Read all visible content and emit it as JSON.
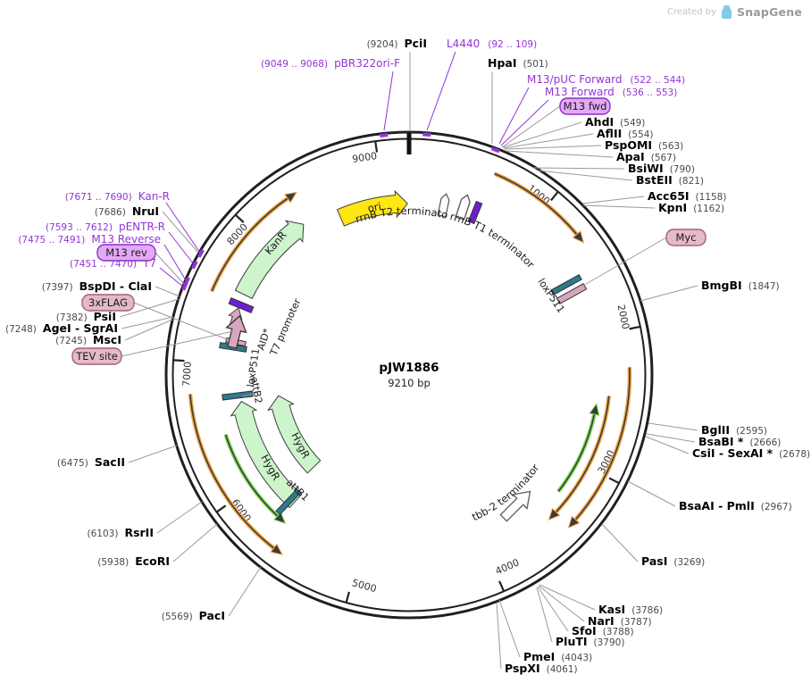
{
  "watermark": {
    "created_by": "Created by",
    "brand": "SnapGene"
  },
  "plasmid": {
    "name": "pJW1886",
    "size": "9210 bp"
  },
  "tick_labels": [
    "1000",
    "2000",
    "3000",
    "4000",
    "5000",
    "6000",
    "7000",
    "8000",
    "9000"
  ],
  "colors": {
    "primer_purple": "#9335d6",
    "site_pos_gray": "#4a4a4a",
    "ring_black": "#1f1f1f",
    "green_fill": "#cdf4cb",
    "yellow": "#ffe714",
    "orange": "#f0a648",
    "bright_green": "#82dd5c",
    "teal": "#2c7a8c",
    "pink": "#d9a6bd",
    "purple_feature": "#6f1fd1",
    "pill_purple_fill": "#e2a9f5",
    "pill_purple_stroke": "#8b2fc9",
    "pill_pink_fill": "#e5b9c8",
    "pill_pink_stroke": "#a06276"
  },
  "restriction_sites": [
    {
      "id": "pciI",
      "name": "PciI",
      "pos": "(9204)",
      "pos_first": true
    },
    {
      "id": "hpaI",
      "name": "HpaI",
      "pos": "(501)",
      "pos_first": false
    },
    {
      "id": "ahdI",
      "name": "AhdI",
      "pos": "(549)",
      "pos_first": false
    },
    {
      "id": "aflII",
      "name": "AflII",
      "pos": "(554)",
      "pos_first": false
    },
    {
      "id": "pspOMI",
      "name": "PspOMI",
      "pos": "(563)",
      "pos_first": false
    },
    {
      "id": "apaI",
      "name": "ApaI",
      "pos": "(567)",
      "pos_first": false
    },
    {
      "id": "bsiWI",
      "name": "BsiWI",
      "pos": "(790)",
      "pos_first": false
    },
    {
      "id": "bstEII",
      "name": "BstEII",
      "pos": "(821)",
      "pos_first": false
    },
    {
      "id": "acc65I",
      "name": "Acc65I",
      "pos": "(1158)",
      "pos_first": false
    },
    {
      "id": "kpnI",
      "name": "KpnI",
      "pos": "(1162)",
      "pos_first": false
    },
    {
      "id": "bmgBI",
      "name": "BmgBI",
      "pos": "(1847)",
      "pos_first": false
    },
    {
      "id": "bglII",
      "name": "BglII",
      "pos": "(2595)",
      "pos_first": false
    },
    {
      "id": "bsaBI",
      "name": "BsaBI *",
      "pos": "(2666)",
      "pos_first": false
    },
    {
      "id": "csiI",
      "name": "CsiI - SexAI *",
      "pos": "(2678)",
      "pos_first": false
    },
    {
      "id": "bsaAI",
      "name": "BsaAI - PmlI",
      "pos": "(2967)",
      "pos_first": false
    },
    {
      "id": "pasI",
      "name": "PasI",
      "pos": "(3269)",
      "pos_first": false
    },
    {
      "id": "kasI",
      "name": "KasI",
      "pos": "(3786)",
      "pos_first": false
    },
    {
      "id": "narI",
      "name": "NarI",
      "pos": "(3787)",
      "pos_first": false
    },
    {
      "id": "sfoI",
      "name": "SfoI",
      "pos": "(3788)",
      "pos_first": false
    },
    {
      "id": "pluTI",
      "name": "PluTI",
      "pos": "(3790)",
      "pos_first": false
    },
    {
      "id": "pmeI",
      "name": "PmeI",
      "pos": "(4043)",
      "pos_first": false
    },
    {
      "id": "pspXI",
      "name": "PspXI",
      "pos": "(4061)",
      "pos_first": false
    },
    {
      "id": "pacI",
      "name": "PacI",
      "pos": "(5569)",
      "pos_first": true
    },
    {
      "id": "ecoRI",
      "name": "EcoRI",
      "pos": "(5938)",
      "pos_first": true
    },
    {
      "id": "rsrII",
      "name": "RsrII",
      "pos": "(6103)",
      "pos_first": true
    },
    {
      "id": "sacII",
      "name": "SacII",
      "pos": "(6475)",
      "pos_first": true
    },
    {
      "id": "mscI",
      "name": "MscI",
      "pos": "(7245)",
      "pos_first": true
    },
    {
      "id": "ageI",
      "name": "AgeI - SgrAI",
      "pos": "(7248)",
      "pos_first": true
    },
    {
      "id": "psiI",
      "name": "PsiI",
      "pos": "(7382)",
      "pos_first": true
    },
    {
      "id": "bspDI",
      "name": "BspDI - ClaI",
      "pos": "(7397)",
      "pos_first": true
    },
    {
      "id": "nruI",
      "name": "NruI",
      "pos": "(7686)",
      "pos_first": true
    }
  ],
  "primers": [
    {
      "id": "pbr322",
      "name": "pBR322ori-F",
      "range": "(9049 .. 9068)",
      "range_first": true
    },
    {
      "id": "l4440",
      "name": "L4440",
      "range": "(92 .. 109)",
      "range_first": false
    },
    {
      "id": "m13puc",
      "name": "M13/pUC Forward",
      "range": "(522 .. 544)",
      "range_first": false
    },
    {
      "id": "m13fwdp",
      "name": "M13 Forward",
      "range": "(536 .. 553)",
      "range_first": false
    },
    {
      "id": "kanrp",
      "name": "Kan-R",
      "range": "(7671 .. 7690)",
      "range_first": true
    },
    {
      "id": "pentr",
      "name": "pENTR-R",
      "range": "(7593 .. 7612)",
      "range_first": true
    },
    {
      "id": "m13revp",
      "name": "M13 Reverse",
      "range": "(7475 .. 7491)",
      "range_first": true
    },
    {
      "id": "t7p",
      "name": "T7",
      "range": "(7451 .. 7470)",
      "range_first": true
    }
  ],
  "primer_pills": [
    {
      "id": "m13fwd",
      "label": "M13 fwd"
    },
    {
      "id": "m13rev",
      "label": "M13 rev"
    }
  ],
  "tag_pills": [
    {
      "id": "myc",
      "label": "Myc"
    },
    {
      "id": "flag3x",
      "label": "3xFLAG"
    },
    {
      "id": "tev",
      "label": "TEV site"
    }
  ],
  "feature_labels": [
    {
      "id": "ori",
      "label": "ori"
    },
    {
      "id": "kanr",
      "label": "KanR"
    },
    {
      "id": "hygr1",
      "label": "HygR"
    },
    {
      "id": "hygr2",
      "label": "HygR"
    },
    {
      "id": "t2",
      "label": "rrnB T2 terminator"
    },
    {
      "id": "t1",
      "label": "rrnB T1 terminator"
    },
    {
      "id": "tbb2",
      "label": "tbb-2 terminator"
    },
    {
      "id": "loxl",
      "label": "loxP511"
    },
    {
      "id": "loxr",
      "label": "loxP511"
    },
    {
      "id": "attb1",
      "label": "attB1"
    },
    {
      "id": "attb2",
      "label": "attB2"
    },
    {
      "id": "aid",
      "label": "AID*"
    },
    {
      "id": "t7prom",
      "label": "T7 promoter"
    }
  ]
}
